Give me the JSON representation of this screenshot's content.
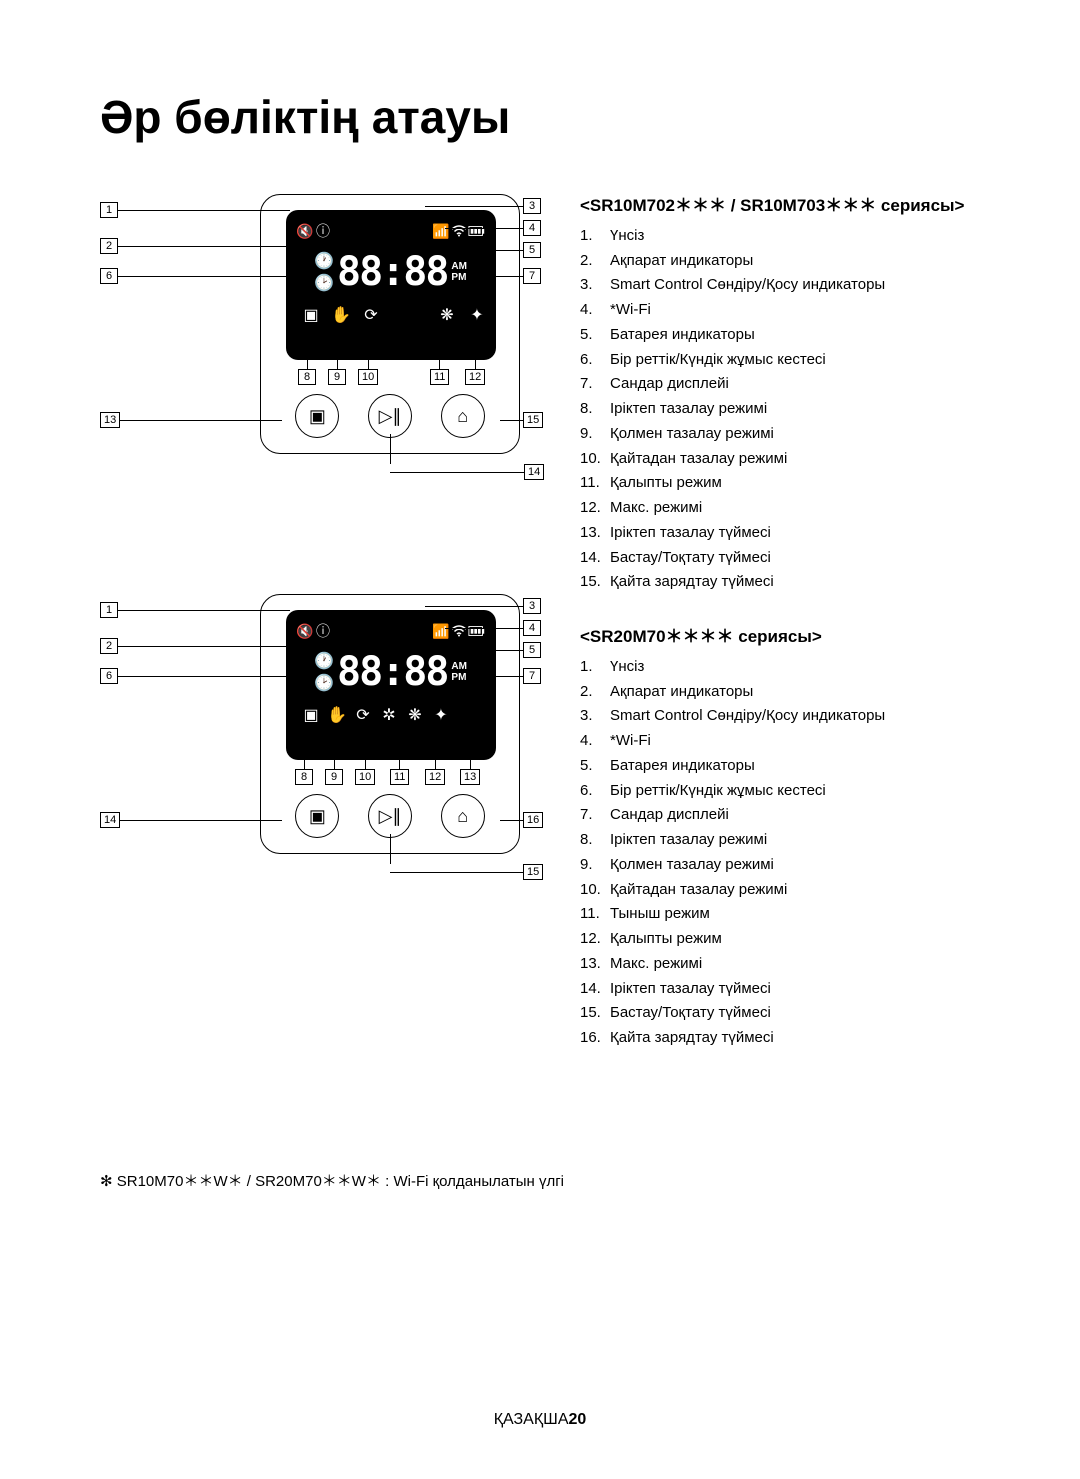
{
  "title": "Әр бөліктің атауы",
  "series1": {
    "heading": "<SR10M702＊＊＊ / SR10M703＊＊＊ сериясы>",
    "items": [
      "Үнсіз",
      "Ақпарат индикаторы",
      "Smart Control Сөндіру/Қосу индикаторы",
      "*Wi-Fi",
      "Батарея индикаторы",
      "Бір реттік/Күндік жұмыс кестесі",
      "Сандар дисплейі",
      "Іріктеп тазалау режимі",
      "Қолмен тазалау режимі",
      "Қайтадан тазалау режимі",
      "Қалыпты режим",
      "Макс. режимі",
      "Іріктеп тазалау түймесі",
      "Бастау/Тоқтату түймесі",
      "Қайта зарядтау түймесі"
    ]
  },
  "series2": {
    "heading": "<SR20M70＊＊＊＊ сериясы>",
    "items": [
      "Үнсіз",
      "Ақпарат индикаторы",
      "Smart Control Сөндіру/Қосу индикаторы",
      "*Wi-Fi",
      "Батарея индикаторы",
      "Бір реттік/Күндік жұмыс кестесі",
      "Сандар дисплейі",
      "Іріктеп тазалау режимі",
      "Қолмен тазалау режимі",
      "Қайтадан тазалау режимі",
      "Тыныш режим",
      "Қалыпты режим",
      "Макс. режимі",
      "Іріктеп тазалау түймесі",
      "Бастау/Тоқтату түймесі",
      "Қайта зарядтау түймесі"
    ]
  },
  "diagram1": {
    "left_callouts": [
      1,
      2,
      6,
      13
    ],
    "right_callouts": [
      3,
      4,
      5,
      7,
      15,
      14
    ],
    "bottom_callouts": [
      8,
      9,
      10,
      11,
      12
    ],
    "digits": "88:88",
    "am": "AM",
    "pm": "PM"
  },
  "diagram2": {
    "left_callouts": [
      1,
      2,
      6,
      14
    ],
    "right_callouts": [
      3,
      4,
      5,
      7,
      16,
      15
    ],
    "bottom_callouts": [
      8,
      9,
      10,
      11,
      12,
      13
    ],
    "digits": "88:88",
    "am": "AM",
    "pm": "PM"
  },
  "footnote": "✻ SR10M70＊＊W＊ / SR20M70＊＊W＊ : Wi-Fi қолданылатын үлгі",
  "footer_lang": "ҚАЗАҚША",
  "footer_page": "20",
  "colors": {
    "text": "#000000",
    "bg": "#ffffff",
    "display_bg": "#000000",
    "display_fg": "#ffffff"
  }
}
